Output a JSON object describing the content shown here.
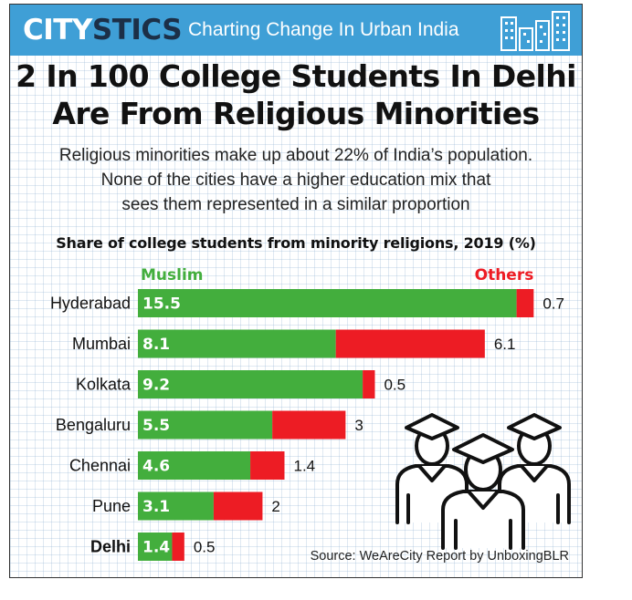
{
  "header": {
    "brand_part1": "CITY",
    "brand_part2": "STICS",
    "tagline": "Charting Change In Urban India"
  },
  "title_line1": "2 In 100 College Students In Delhi",
  "title_line2": "Are From Religious Minorities",
  "subtitle_line1": "Religious minorities make up about 22% of India’s population.",
  "subtitle_line2": "None of the cities have a higher education mix that",
  "subtitle_line3": "sees them represented in a similar proportion",
  "source": "Source: WeAreCity Report by UnboxingBLR",
  "icons": [
    "city-skyline-icon",
    "graduates-icon"
  ],
  "chart_data": {
    "type": "bar",
    "orientation": "horizontal",
    "stacked": true,
    "title": "Share of college students from minority religions, 2019 (%)",
    "categories": [
      "Hyderabad",
      "Mumbai",
      "Kolkata",
      "Bengaluru",
      "Chennai",
      "Pune",
      "Delhi"
    ],
    "highlight": "Delhi",
    "series": [
      {
        "name": "Muslim",
        "color": "#43ae3d",
        "values": [
          15.5,
          8.1,
          9.2,
          5.5,
          4.6,
          3.1,
          1.4
        ]
      },
      {
        "name": "Others",
        "color": "#ed1c24",
        "values": [
          0.7,
          6.1,
          0.5,
          3,
          1.4,
          2,
          0.5
        ]
      }
    ],
    "value_labels": {
      "Muslim": [
        "15.5",
        "8.1",
        "9.2",
        "5.5",
        "4.6",
        "3.1",
        "1.4"
      ],
      "Others": [
        "0.7",
        "6.1",
        "0.5",
        "3",
        "1.4",
        "2",
        "0.5"
      ]
    },
    "grid": false
  }
}
